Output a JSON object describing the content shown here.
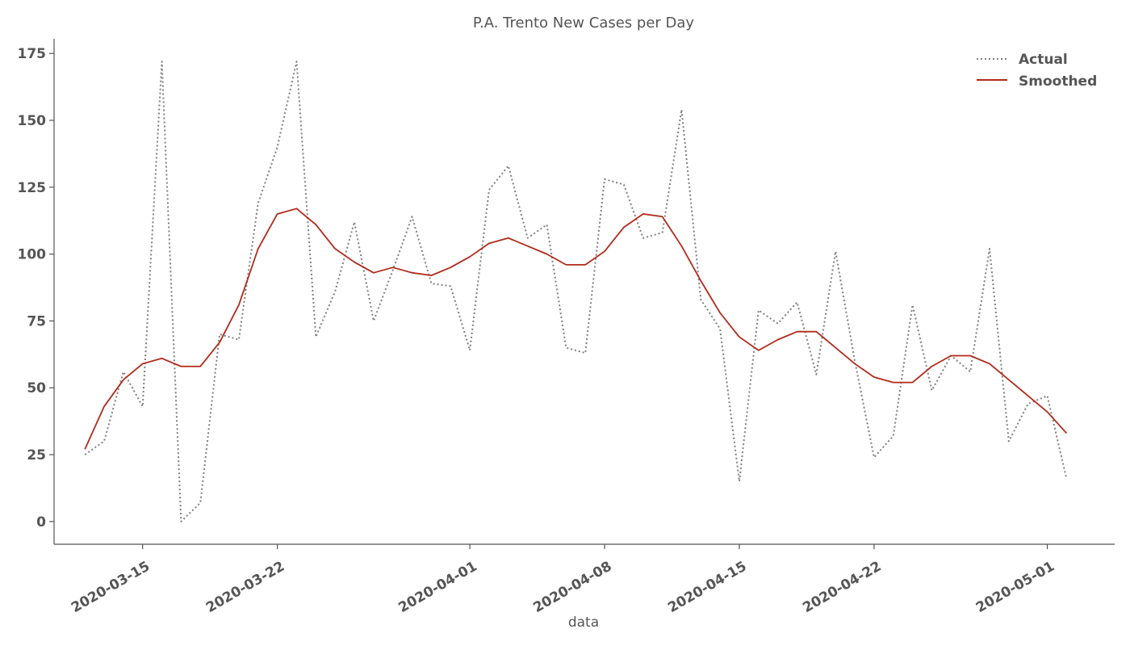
{
  "chart_data": {
    "type": "line",
    "title": "P.A. Trento New Cases per Day",
    "xlabel": "data",
    "ylabel": "",
    "x_start": "2020-03-12",
    "x_end": "2020-05-02",
    "xlim": [
      "2020-03-10.4",
      "2020-05-04.5"
    ],
    "ylim": [
      -8.5,
      180.5
    ],
    "yticks": [
      0,
      25,
      50,
      75,
      100,
      125,
      150,
      175
    ],
    "xticks": [
      "2020-03-15",
      "2020-03-22",
      "2020-04-01",
      "2020-04-08",
      "2020-04-15",
      "2020-04-22",
      "2020-05-01"
    ],
    "grid": false,
    "legend_position": "top-right",
    "series": [
      {
        "name": "Actual",
        "style": "dotted",
        "color": "#7f7f7f",
        "values": [
          25,
          30,
          56,
          43,
          172,
          0,
          7,
          70,
          68,
          119,
          140,
          172,
          69,
          86,
          112,
          75,
          94,
          114,
          89,
          88,
          64,
          124,
          133,
          106,
          111,
          65,
          63,
          128,
          126,
          106,
          108,
          154,
          83,
          72,
          15,
          79,
          74,
          82,
          55,
          101,
          60,
          24,
          32,
          81,
          49,
          62,
          56,
          102,
          30,
          44,
          47,
          16
        ]
      },
      {
        "name": "Smoothed",
        "style": "solid",
        "color": "#b22a1a",
        "values": [
          27,
          43,
          53,
          59,
          61,
          58,
          58,
          67,
          81,
          102,
          115,
          117,
          111,
          102,
          97,
          93,
          95,
          93,
          92,
          95,
          99,
          104,
          106,
          103,
          100,
          96,
          96,
          101,
          110,
          115,
          114,
          103,
          90,
          78,
          69,
          64,
          68,
          71,
          71,
          65,
          59,
          54,
          52,
          52,
          58,
          62,
          62,
          59,
          53,
          47,
          41,
          33
        ]
      }
    ]
  }
}
